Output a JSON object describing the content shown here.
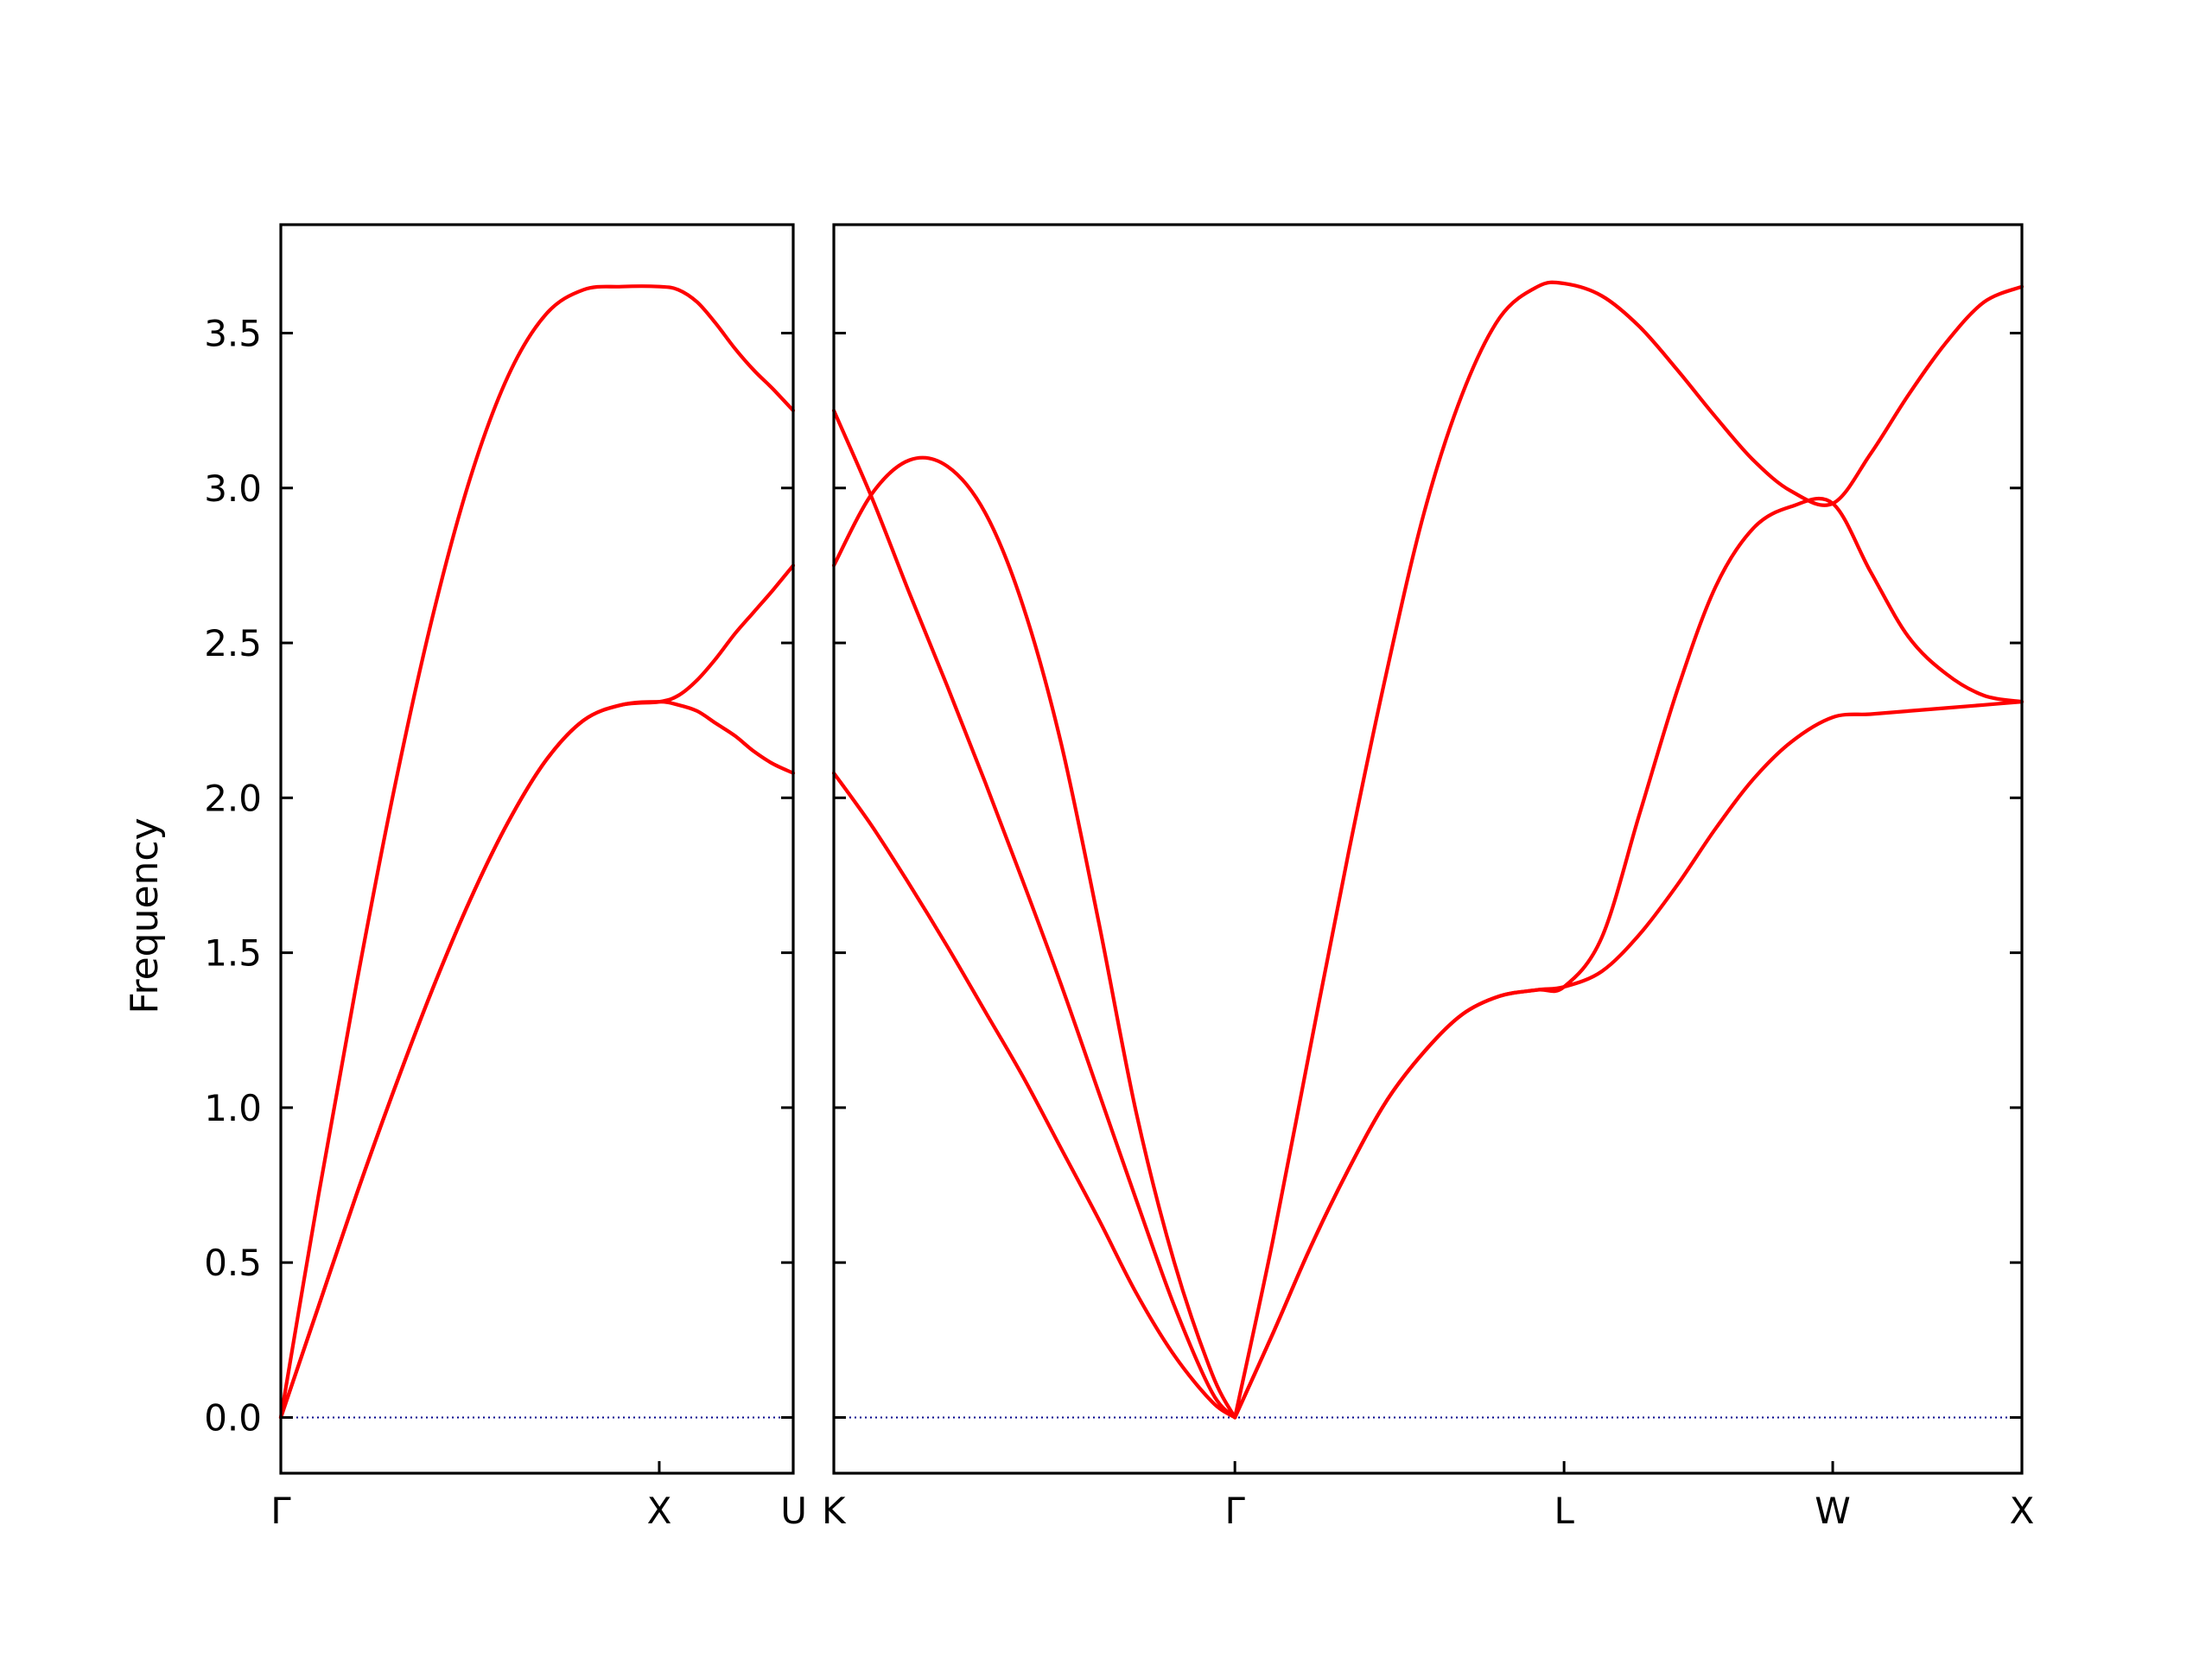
{
  "chart_data": {
    "type": "line",
    "ylabel": "Frequency",
    "ylim": [
      -0.18,
      3.85
    ],
    "yticks": [
      "0.0",
      "0.5",
      "1.0",
      "1.5",
      "2.0",
      "2.5",
      "3.0",
      "3.5"
    ],
    "colors": {
      "bands": "#ff0000",
      "zero_line": "#00008b",
      "axes": "#000000"
    },
    "grid": false,
    "legend": "none",
    "panels": [
      {
        "xlim": [
          0,
          1.354
        ],
        "xtick_positions": [
          0,
          1.0,
          1.354
        ],
        "xtick_labels": [
          "Γ",
          "X",
          "U"
        ],
        "series": [
          {
            "x": [
              0,
              0.1,
              0.2,
              0.3,
              0.4,
              0.5,
              0.6,
              0.7,
              0.8,
              0.9,
              1.0,
              1.05,
              1.1,
              1.15,
              1.2,
              1.25,
              1.3,
              1.354
            ],
            "y": [
              0,
              0.72,
              1.4,
              2.03,
              2.58,
              3.03,
              3.36,
              3.56,
              3.64,
              3.65,
              3.65,
              3.64,
              3.6,
              3.53,
              3.45,
              3.38,
              3.32,
              3.25
            ]
          },
          {
            "x": [
              0,
              0.1,
              0.2,
              0.3,
              0.4,
              0.5,
              0.6,
              0.7,
              0.8,
              0.9,
              1.0,
              1.05,
              1.1,
              1.15,
              1.2,
              1.25,
              1.3,
              1.354
            ],
            "y": [
              0,
              0.36,
              0.72,
              1.06,
              1.38,
              1.67,
              1.92,
              2.12,
              2.25,
              2.3,
              2.31,
              2.33,
              2.38,
              2.45,
              2.53,
              2.6,
              2.67,
              2.75
            ]
          },
          {
            "x": [
              0,
              0.1,
              0.2,
              0.3,
              0.4,
              0.5,
              0.6,
              0.7,
              0.8,
              0.9,
              1.0,
              1.05,
              1.1,
              1.15,
              1.2,
              1.25,
              1.3,
              1.354
            ],
            "y": [
              0,
              0.36,
              0.72,
              1.06,
              1.38,
              1.67,
              1.92,
              2.12,
              2.25,
              2.3,
              2.31,
              2.3,
              2.28,
              2.24,
              2.2,
              2.15,
              2.11,
              2.08
            ]
          }
        ]
      },
      {
        "xlim": [
          0,
          3.14
        ],
        "xtick_positions": [
          0,
          1.06,
          1.93,
          2.64,
          3.14
        ],
        "xtick_labels": [
          "K",
          "Γ",
          "L",
          "W",
          "X"
        ],
        "series": [
          {
            "x": [
              0,
              0.1,
              0.2,
              0.3,
              0.4,
              0.5,
              0.6,
              0.7,
              0.8,
              0.9,
              1.0,
              1.06
            ],
            "y": [
              3.25,
              2.97,
              2.66,
              2.36,
              2.05,
              1.73,
              1.4,
              1.05,
              0.7,
              0.36,
              0.08,
              0
            ]
          },
          {
            "x": [
              0,
              0.1,
              0.2,
              0.3,
              0.4,
              0.5,
              0.6,
              0.7,
              0.8,
              0.9,
              1.0,
              1.06
            ],
            "y": [
              2.75,
              2.98,
              3.09,
              3.07,
              2.92,
              2.62,
              2.18,
              1.6,
              0.98,
              0.5,
              0.14,
              0
            ]
          },
          {
            "x": [
              0,
              0.1,
              0.2,
              0.3,
              0.4,
              0.5,
              0.6,
              0.7,
              0.8,
              0.9,
              1.0,
              1.06
            ],
            "y": [
              2.08,
              1.91,
              1.72,
              1.52,
              1.31,
              1.1,
              0.87,
              0.64,
              0.4,
              0.2,
              0.05,
              0
            ]
          },
          {
            "x": [
              1.06,
              1.16,
              1.26,
              1.36,
              1.46,
              1.56,
              1.66,
              1.76,
              1.86,
              1.93,
              2.03,
              2.13,
              2.23,
              2.33,
              2.43,
              2.53,
              2.64,
              2.74,
              2.84,
              2.94,
              3.04,
              3.14
            ],
            "y": [
              0,
              0.57,
              1.2,
              1.82,
              2.4,
              2.92,
              3.3,
              3.55,
              3.65,
              3.66,
              3.62,
              3.52,
              3.38,
              3.23,
              3.09,
              2.99,
              2.95,
              3.11,
              3.3,
              3.47,
              3.6,
              3.65
            ]
          },
          {
            "x": [
              1.06,
              1.16,
              1.26,
              1.36,
              1.46,
              1.56,
              1.66,
              1.76,
              1.86,
              1.93,
              2.03,
              2.13,
              2.23,
              2.33,
              2.43,
              2.53,
              2.64,
              2.74,
              2.84,
              2.94,
              3.04,
              3.14
            ],
            "y": [
              0,
              0.27,
              0.55,
              0.8,
              1.02,
              1.18,
              1.3,
              1.36,
              1.38,
              1.39,
              1.55,
              1.95,
              2.35,
              2.68,
              2.87,
              2.94,
              2.95,
              2.73,
              2.52,
              2.4,
              2.33,
              2.31
            ]
          },
          {
            "x": [
              1.06,
              1.16,
              1.26,
              1.36,
              1.46,
              1.56,
              1.66,
              1.76,
              1.86,
              1.93,
              2.03,
              2.13,
              2.23,
              2.33,
              2.43,
              2.53,
              2.64,
              2.74,
              2.84,
              2.94,
              3.04,
              3.14
            ],
            "y": [
              0,
              0.27,
              0.55,
              0.8,
              1.02,
              1.18,
              1.3,
              1.36,
              1.38,
              1.39,
              1.44,
              1.56,
              1.72,
              1.9,
              2.06,
              2.18,
              2.26,
              2.27,
              2.28,
              2.29,
              2.3,
              2.31
            ]
          }
        ]
      }
    ]
  }
}
